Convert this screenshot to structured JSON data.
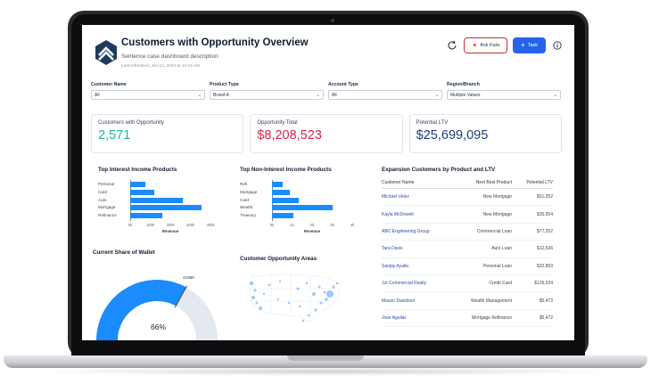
{
  "header": {
    "title": "Customers with Opportunity Overview",
    "subtitle": "Sentence case dashboard description",
    "last_refreshed": "Last refreshed: Jun 12, 2024 at 12:44 AM",
    "ask_label": "Ask Kaia",
    "task_label": "Task"
  },
  "filters": [
    {
      "label": "Customer Name",
      "value": "All"
    },
    {
      "label": "Product Type",
      "value": "Brand A"
    },
    {
      "label": "Account Type",
      "value": "All"
    },
    {
      "label": "Region/Branch",
      "value": "Multiple Values"
    }
  ],
  "kpis": [
    {
      "label": "Customers with Opportunity",
      "value": "2,571",
      "color": "#1fb5a0"
    },
    {
      "label": "Opportunity Total",
      "value": "$8,208,523",
      "color": "#d6284a"
    },
    {
      "label": "Potential LTV",
      "value": "$25,699,095",
      "color": "#1f3b7a"
    }
  ],
  "interest_chart": {
    "title": "Top Interest Income Products",
    "chart_data": {
      "type": "bar",
      "categories": [
        "Personal",
        "Card",
        "Auto",
        "Mortgage",
        "Refinance"
      ],
      "values": [
        75000,
        120000,
        260000,
        355000,
        160000
      ],
      "xlabel": "Revenue",
      "xlim": [
        0,
        400000
      ],
      "ticks": [
        "0k",
        "100k",
        "200k",
        "300k",
        "400k"
      ]
    }
  },
  "noninterest_chart": {
    "title": "Top Non-Interest Income Products",
    "chart_data": {
      "type": "bar",
      "categories": [
        "Refi",
        "Mortgage",
        "Card",
        "Wealth",
        "Treasury"
      ],
      "values": [
        550,
        900,
        1350,
        3000,
        1050
      ],
      "xlabel": "Revenue",
      "xlim": [
        0,
        4000
      ],
      "ticks": [
        "0k",
        "1k",
        "2k",
        "3k",
        "4k"
      ]
    }
  },
  "wallet": {
    "title": "Current Share of Wallet",
    "chart_data": {
      "type": "gauge",
      "value": 66,
      "marker": "4186K"
    },
    "value_label": "66%",
    "marker_label": "4186K",
    "color": "#1a8cff",
    "track_color": "#e4e8f0"
  },
  "map": {
    "title": "Customer Opportunity Areas"
  },
  "expansion": {
    "title": "Expansion Customers by Product and LTV",
    "headers": [
      "Customer Name",
      "Next Best Product",
      "Potential LTV"
    ],
    "rows": [
      [
        "Michael Velez",
        "New Mortgage",
        "$51,252"
      ],
      [
        "Kayla McDowell",
        "New Mortgage",
        "$35,954"
      ],
      [
        "ABC Engineering Group",
        "Commercial Loan",
        "$77,252"
      ],
      [
        "Tara Davis",
        "Auto Loan",
        "$12,536"
      ],
      [
        "Sanjay Ayalla",
        "Personal Loan",
        "$32,893"
      ],
      [
        "1st Commercial Realty",
        "Credit Card",
        "$125,024"
      ],
      [
        "Mason Davidson",
        "Wealth Management",
        "$5,473"
      ],
      [
        "Jose Aguilar",
        "Mortgage Refinance",
        "$5,472"
      ]
    ]
  }
}
